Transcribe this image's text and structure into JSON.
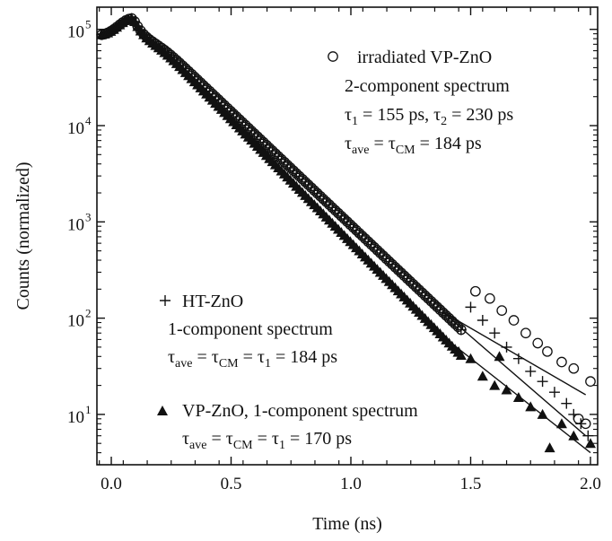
{
  "chart_data": {
    "type": "scatter",
    "xlabel": "Time (ns)",
    "ylabel": "Counts (normalized)",
    "xlim": [
      -0.06,
      2.03
    ],
    "ylim": [
      3,
      170000
    ],
    "yscale": "log",
    "x_ticks": [
      0.0,
      0.5,
      1.0,
      1.5,
      2.0
    ],
    "x_tick_labels": [
      "0.0",
      "0.5",
      "1.0",
      "1.5",
      "2.0"
    ],
    "y_ticks": [
      10,
      100,
      1000,
      10000,
      100000
    ],
    "y_tick_labels": [
      "10",
      "10",
      "10",
      "10",
      "10"
    ],
    "y_tick_exponents": [
      "1",
      "2",
      "3",
      "4",
      "5"
    ],
    "grid": false,
    "series": [
      {
        "label_lines": [
          {
            "t": "irradiated VP-ZnO"
          },
          {
            "t": "2-component spectrum"
          },
          {
            "t": "τ",
            "sub": "1",
            "t2": " = 155 ps, τ",
            "sub2": "2",
            "t3": " = 230 ps"
          },
          {
            "t": "τ",
            "sub": "ave",
            "t2": " = τ",
            "sub2": "CM",
            "t3": " = 184 ps"
          }
        ],
        "marker": "open-circle",
        "peak": 130000,
        "tau_ns": 0.184,
        "fit_end": [
          1.98,
          16
        ],
        "points": [
          [
            1.52,
            190
          ],
          [
            1.58,
            160
          ],
          [
            1.63,
            120
          ],
          [
            1.68,
            95
          ],
          [
            1.73,
            70
          ],
          [
            1.78,
            55
          ],
          [
            1.82,
            45
          ],
          [
            1.88,
            35
          ],
          [
            1.93,
            30
          ],
          [
            1.95,
            9
          ],
          [
            1.98,
            8
          ],
          [
            2.0,
            22
          ]
        ]
      },
      {
        "label_lines": [
          {
            "t": "HT-ZnO"
          },
          {
            "t": "1-component spectrum"
          },
          {
            "t": "τ",
            "sub": "ave",
            "t2": " = τ",
            "sub2": "CM",
            "t3": " = τ",
            "sub3": "1",
            "t4": " = 184 ps"
          }
        ],
        "marker": "plus",
        "peak": 130000,
        "tau_ns": 0.184,
        "fit_end": [
          1.98,
          6
        ],
        "points": [
          [
            1.5,
            130
          ],
          [
            1.55,
            95
          ],
          [
            1.6,
            70
          ],
          [
            1.65,
            50
          ],
          [
            1.7,
            38
          ],
          [
            1.75,
            28
          ],
          [
            1.8,
            22
          ],
          [
            1.85,
            17
          ],
          [
            1.9,
            13
          ],
          [
            1.93,
            10
          ],
          [
            1.96,
            8
          ],
          [
            1.99,
            6
          ]
        ]
      },
      {
        "label_lines": [
          {
            "t": "VP-ZnO, 1-component spectrum"
          },
          {
            "t": "τ",
            "sub": "ave",
            "t2": " = τ",
            "sub2": "CM",
            "t3": " = τ",
            "sub3": "1",
            "t4": " = 170 ps"
          }
        ],
        "marker": "filled-triangle",
        "peak": 130000,
        "tau_ns": 0.17,
        "fit_end": [
          2.0,
          4
        ],
        "points": [
          [
            1.45,
            45
          ],
          [
            1.5,
            38
          ],
          [
            1.55,
            25
          ],
          [
            1.6,
            20
          ],
          [
            1.62,
            40
          ],
          [
            1.65,
            18
          ],
          [
            1.7,
            15
          ],
          [
            1.75,
            12
          ],
          [
            1.8,
            10
          ],
          [
            1.83,
            4.5
          ],
          [
            1.88,
            8
          ],
          [
            1.93,
            6
          ],
          [
            2.0,
            5
          ]
        ]
      }
    ]
  }
}
